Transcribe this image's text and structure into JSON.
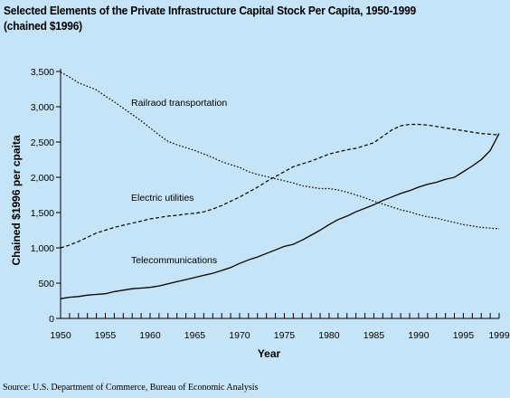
{
  "title_line1": "Selected Elements of the Private Infrastructure Capital Stock Per Capita, 1950-1999",
  "title_line2": "(chained $1996)",
  "source": "Source: U.S. Department of Commerce, Bureau of Economic Analysis",
  "colors": {
    "background": "#c6e4f7",
    "line": "#000000"
  },
  "chart_data": {
    "type": "line",
    "xlabel": "Year",
    "ylabel": "Chained $1996 per cpaita",
    "xlim": [
      1950,
      1999
    ],
    "ylim": [
      0,
      3500
    ],
    "x_ticks": [
      1950,
      1955,
      1960,
      1965,
      1970,
      1975,
      1980,
      1985,
      1990,
      1995,
      1999
    ],
    "y_ticks": [
      0,
      500,
      1000,
      1500,
      2000,
      2500,
      3000,
      3500
    ],
    "y_tick_labels": [
      "0",
      "500",
      "1,000",
      "1,500",
      "2,000",
      "2,500",
      "3,000",
      "3,500"
    ],
    "legend": "none",
    "grid": false,
    "series": [
      {
        "name": "Railraod transportation",
        "style": "dotted",
        "x": [
          1950,
          1951,
          1952,
          1953,
          1954,
          1955,
          1956,
          1957,
          1958,
          1959,
          1960,
          1961,
          1962,
          1963,
          1964,
          1965,
          1966,
          1967,
          1968,
          1969,
          1970,
          1971,
          1972,
          1973,
          1974,
          1975,
          1976,
          1977,
          1978,
          1979,
          1980,
          1981,
          1982,
          1983,
          1984,
          1985,
          1986,
          1987,
          1988,
          1989,
          1990,
          1991,
          1992,
          1993,
          1994,
          1995,
          1996,
          1997,
          1998,
          1999
        ],
        "values": [
          3490,
          3420,
          3340,
          3290,
          3240,
          3150,
          3070,
          2980,
          2890,
          2800,
          2700,
          2600,
          2510,
          2460,
          2420,
          2380,
          2330,
          2280,
          2220,
          2180,
          2140,
          2080,
          2040,
          2010,
          1980,
          1950,
          1920,
          1880,
          1860,
          1840,
          1840,
          1820,
          1790,
          1750,
          1710,
          1660,
          1620,
          1580,
          1540,
          1510,
          1470,
          1440,
          1420,
          1390,
          1360,
          1330,
          1310,
          1290,
          1280,
          1270
        ]
      },
      {
        "name": "Electric utilities",
        "style": "dashed",
        "x": [
          1950,
          1951,
          1952,
          1953,
          1954,
          1955,
          1956,
          1957,
          1958,
          1959,
          1960,
          1961,
          1962,
          1963,
          1964,
          1965,
          1966,
          1967,
          1968,
          1969,
          1970,
          1971,
          1972,
          1973,
          1974,
          1975,
          1976,
          1977,
          1978,
          1979,
          1980,
          1981,
          1982,
          1983,
          1984,
          1985,
          1986,
          1987,
          1988,
          1989,
          1990,
          1991,
          1992,
          1993,
          1994,
          1995,
          1996,
          1997,
          1998,
          1999
        ],
        "values": [
          1000,
          1040,
          1090,
          1150,
          1210,
          1250,
          1290,
          1320,
          1350,
          1380,
          1410,
          1430,
          1450,
          1460,
          1480,
          1490,
          1510,
          1550,
          1600,
          1660,
          1720,
          1790,
          1860,
          1940,
          2010,
          2080,
          2150,
          2190,
          2230,
          2280,
          2330,
          2360,
          2390,
          2410,
          2450,
          2490,
          2580,
          2670,
          2730,
          2750,
          2750,
          2740,
          2720,
          2700,
          2680,
          2660,
          2640,
          2620,
          2610,
          2600
        ]
      },
      {
        "name": "Telecommunications",
        "style": "solid",
        "x": [
          1950,
          1951,
          1952,
          1953,
          1954,
          1955,
          1956,
          1957,
          1958,
          1959,
          1960,
          1961,
          1962,
          1963,
          1964,
          1965,
          1966,
          1967,
          1968,
          1969,
          1970,
          1971,
          1972,
          1973,
          1974,
          1975,
          1976,
          1977,
          1978,
          1979,
          1980,
          1981,
          1982,
          1983,
          1984,
          1985,
          1986,
          1987,
          1988,
          1989,
          1990,
          1991,
          1992,
          1993,
          1994,
          1995,
          1996,
          1997,
          1998,
          1999
        ],
        "values": [
          280,
          300,
          310,
          330,
          340,
          350,
          380,
          400,
          420,
          430,
          440,
          460,
          490,
          520,
          550,
          580,
          610,
          640,
          680,
          720,
          780,
          830,
          870,
          920,
          970,
          1020,
          1050,
          1110,
          1180,
          1250,
          1330,
          1400,
          1450,
          1510,
          1560,
          1610,
          1670,
          1720,
          1770,
          1810,
          1860,
          1900,
          1930,
          1970,
          2000,
          2080,
          2160,
          2250,
          2380,
          2620
        ]
      }
    ]
  }
}
